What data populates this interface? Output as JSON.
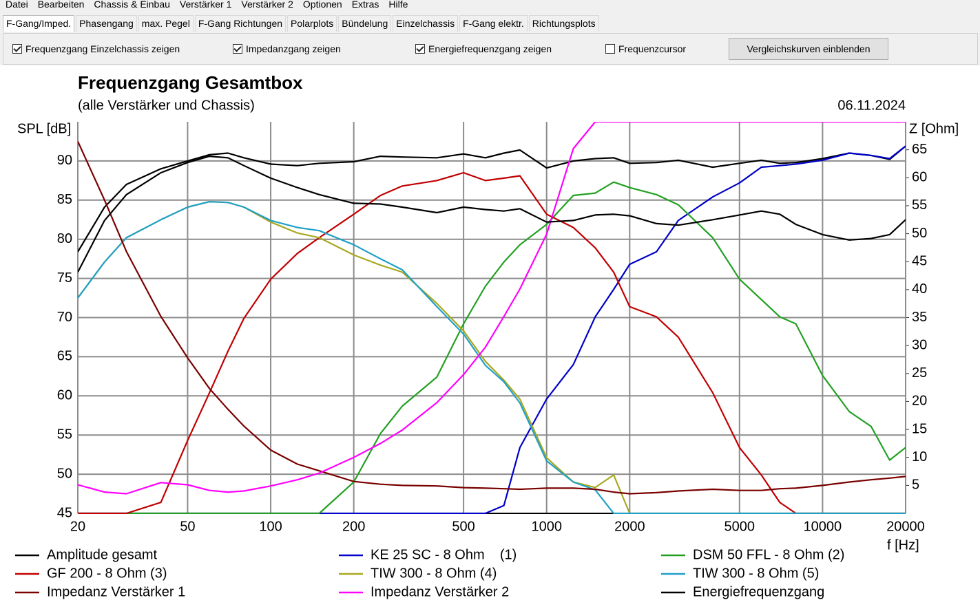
{
  "menu": [
    "Datei",
    "Bearbeiten",
    "Chassis & Einbau",
    "Verstärker 1",
    "Verstärker 2",
    "Optionen",
    "Extras",
    "Hilfe"
  ],
  "tabs": [
    "F-Gang/Imped.",
    "Phasengang",
    "max. Pegel",
    "F-Gang Richtungen",
    "Polarplots",
    "Bündelung",
    "Einzelchassis",
    "F-Gang elektr.",
    "Richtungsplots"
  ],
  "active_tab": 0,
  "checkboxes": [
    {
      "label": "Frequenzgang Einzelchassis zeigen",
      "checked": true
    },
    {
      "label": "Impedanzgang zeigen",
      "checked": true
    },
    {
      "label": "Energiefrequenzgang zeigen",
      "checked": true
    },
    {
      "label": "Frequenzcursor",
      "checked": false
    }
  ],
  "button": "Vergleichskurven einblenden",
  "chart_data": {
    "type": "line",
    "title": "Frequenzgang Gesamtbox",
    "subtitle": "(alle Verstärker und Chassis)",
    "date": "06.11.2024",
    "ylabel": "SPL [dB]",
    "y2label": "Z [Ohm]",
    "xlabel": "f [Hz]",
    "xscale": "log",
    "grid": true,
    "legend": "bottom",
    "xlim": [
      20,
      20000
    ],
    "xticks": [
      20,
      50,
      100,
      200,
      500,
      1000,
      2000,
      5000,
      10000,
      20000
    ],
    "ylim": [
      45,
      95
    ],
    "yticks": [
      45,
      50,
      55,
      60,
      65,
      70,
      75,
      80,
      85,
      90
    ],
    "y2lim": [
      0,
      70
    ],
    "y2ticks": [
      5,
      10,
      15,
      20,
      25,
      30,
      35,
      40,
      45,
      50,
      55,
      60,
      65
    ],
    "x": [
      20,
      25,
      30,
      40,
      50,
      60,
      70,
      80,
      100,
      125,
      150,
      200,
      250,
      300,
      400,
      500,
      600,
      700,
      800,
      1000,
      1250,
      1500,
      1750,
      2000,
      2500,
      3000,
      4000,
      5000,
      6000,
      7000,
      8000,
      10000,
      12500,
      15000,
      17500,
      20000
    ],
    "series": [
      {
        "name": "Amplitude gesamt",
        "color": "#000000",
        "values": [
          78.4,
          84.1,
          87,
          89,
          90,
          90.8,
          91,
          90.4,
          89.6,
          89.4,
          89.7,
          89.9,
          90.6,
          90.5,
          90.4,
          90.9,
          90.4,
          91,
          91.4,
          89.1,
          90,
          90.3,
          90.4,
          89.7,
          89.8,
          90.1,
          89.2,
          89.7,
          90.1,
          89.7,
          89.8,
          90.3,
          91,
          90.7,
          90.2,
          91.9
        ]
      },
      {
        "name": "KE 25 SC - 8 Ohm    (1)",
        "color": "#0000c8",
        "values": [
          45,
          45,
          45,
          45,
          45,
          45,
          45,
          45,
          45,
          45,
          45,
          45,
          45,
          45,
          45,
          45,
          45,
          46,
          53.4,
          59.6,
          64,
          70.1,
          73.6,
          76.8,
          78.4,
          82.4,
          85.4,
          87.2,
          89.2,
          89.4,
          89.6,
          90.1,
          91,
          90.7,
          90.3,
          91.9
        ]
      },
      {
        "name": "DSM 50 FFL - 8 Ohm (2)",
        "color": "#22a022",
        "values": [
          45,
          45,
          45,
          45,
          45,
          45,
          45,
          45,
          45,
          45,
          45,
          49,
          55.2,
          58.7,
          62.4,
          69.2,
          74,
          77.1,
          79.3,
          81.9,
          85.6,
          85.9,
          87.3,
          86.6,
          85.7,
          84.4,
          80.2,
          74.9,
          72.3,
          70.1,
          69.2,
          62.6,
          58,
          56.1,
          51.8,
          53.4
        ]
      },
      {
        "name": "GF 200 - 8 Ohm (3)",
        "color": "#c00000",
        "values": [
          45,
          45,
          45,
          46.4,
          54.3,
          60.4,
          65.7,
          69.9,
          74.9,
          78.2,
          80.2,
          83.2,
          85.6,
          86.8,
          87.5,
          88.5,
          87.5,
          87.8,
          88.1,
          83.2,
          81.5,
          78.9,
          75.8,
          71.4,
          70.1,
          67.5,
          60.4,
          53.4,
          49.9,
          46.4,
          45,
          45,
          45,
          45,
          45,
          45
        ]
      },
      {
        "name": "TIW 300 - 8 Ohm (4)",
        "color": "#a8a820",
        "values": [
          72.5,
          77.1,
          80.2,
          82.5,
          84.1,
          84.8,
          84.7,
          84.1,
          82.2,
          80.8,
          80.2,
          78,
          76.7,
          75.8,
          71.8,
          68.3,
          64.4,
          62,
          59.6,
          52.1,
          49,
          48.3,
          49.9,
          45,
          45,
          45,
          45,
          45,
          45,
          45,
          45,
          45,
          45,
          45,
          45,
          45
        ]
      },
      {
        "name": "TIW 300 - 8 Ohm (5)",
        "color": "#20a0c8",
        "values": [
          72.5,
          77.1,
          80.2,
          82.5,
          84.1,
          84.8,
          84.7,
          84.1,
          82.4,
          81.5,
          81.1,
          79.3,
          77.5,
          76.1,
          71.4,
          67.9,
          63.9,
          61.8,
          59.1,
          51.7,
          49,
          48,
          45,
          45,
          45,
          45,
          45,
          45,
          45,
          45,
          45,
          45,
          45,
          45,
          45,
          45
        ]
      },
      {
        "name": "Impedanz Verstärker 1",
        "color": "#7a0000",
        "axis": "y2",
        "values": [
          66.5,
          56,
          46.8,
          35.2,
          27.8,
          22.3,
          18.6,
          15.6,
          11.3,
          8.8,
          7.6,
          5.7,
          5.2,
          5,
          4.9,
          4.6,
          4.5,
          4.4,
          4.3,
          4.5,
          4.5,
          4.3,
          3.8,
          3.5,
          3.7,
          4,
          4.3,
          4.1,
          4.1,
          4.4,
          4.5,
          5,
          5.6,
          6,
          6.3,
          6.6
        ]
      },
      {
        "name": "Impedanz Verstärker 2",
        "color": "#ff00ff",
        "axis": "y2",
        "values": [
          5.1,
          3.8,
          3.5,
          5.5,
          5.1,
          4.1,
          3.8,
          4,
          4.9,
          6,
          7.2,
          10,
          12.5,
          14.9,
          19.8,
          24.8,
          29.7,
          35.2,
          40.1,
          49.9,
          65.2,
          70,
          70,
          70,
          70,
          70,
          70,
          70,
          70,
          70,
          70,
          70,
          70,
          70,
          70,
          70
        ]
      },
      {
        "name": "Energiefrequenzgang",
        "color": "#000000",
        "values": [
          75.8,
          82.4,
          85.7,
          88.5,
          89.8,
          90.6,
          90.4,
          89.4,
          87.8,
          86.6,
          85.7,
          84.6,
          84.5,
          84.1,
          83.4,
          84.1,
          83.8,
          83.6,
          83.9,
          82.2,
          82.4,
          83.1,
          83.2,
          83,
          82,
          81.8,
          82.5,
          83.1,
          83.6,
          83.2,
          81.9,
          80.6,
          79.9,
          80.1,
          80.6,
          82.5
        ]
      }
    ]
  }
}
